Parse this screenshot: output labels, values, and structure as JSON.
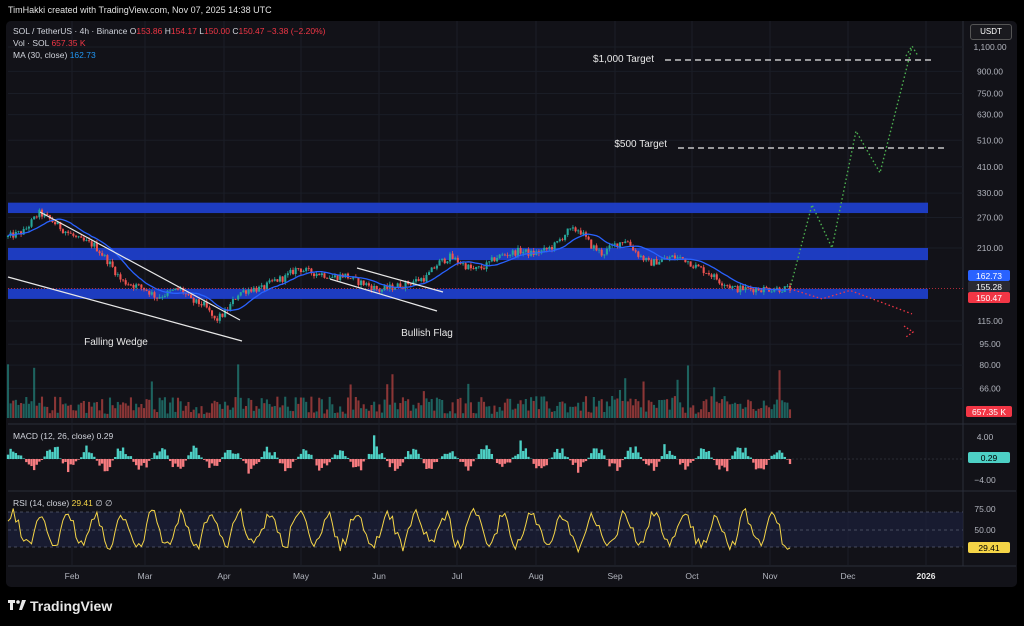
{
  "header": {
    "text": "TimHakki created with TradingView.com, Nov 07, 2025 14:38 UTC"
  },
  "legend": {
    "symbol": "SOL / TetherUS · 4h · Binance",
    "o_label": "O",
    "o": "153.86",
    "h_label": "H",
    "h": "154.17",
    "l_label": "L",
    "l": "150.00",
    "c_label": "C",
    "c": "150.47",
    "chg": "−3.38 (−2.20%)",
    "vol_label": "Vol · SOL",
    "vol": "657.35 K",
    "ma_label": "MA (30, close)",
    "ma": "162.73",
    "macd_label": "MACD (12, 26, close)",
    "macd": "0.29",
    "rsi_label": "RSI (14, close)",
    "rsi": "29.41",
    "rsi_extra": "∅ ∅"
  },
  "currency_button": "USDT",
  "brand": {
    "name": "TradingView",
    "logo": "tradingview-logo-icon"
  },
  "colors": {
    "up": "#26a69a",
    "down": "#ef5350",
    "zone": "#1f3fc9",
    "ma": "#2962ff",
    "rsi": "#f5d547",
    "target_path": "#4caf50",
    "bear_path": "#f23645"
  },
  "chart_data": [
    {
      "type": "candlestick",
      "title": "SOL / TetherUS · 4h · Binance",
      "x_ticks": [
        "Feb",
        "Mar",
        "Apr",
        "May",
        "Jun",
        "Jul",
        "Aug",
        "Sep",
        "Oct",
        "Nov",
        "Dec",
        "2026"
      ],
      "y_ticks": [
        "1,100.00",
        "900.00",
        "750.00",
        "630.00",
        "510.00",
        "410.00",
        "330.00",
        "270.00",
        "210.00",
        "115.00",
        "95.00",
        "80.00",
        "66.00"
      ],
      "y_scale": "log",
      "price_tags": [
        {
          "value": "162.73",
          "color": "#2962ff"
        },
        {
          "value": "155.28",
          "color": "#2a2a33"
        },
        {
          "value": "150.47",
          "color": "#f23645"
        }
      ],
      "price_path": [
        [
          0.0,
          230
        ],
        [
          0.02,
          240
        ],
        [
          0.04,
          280
        ],
        [
          0.05,
          270
        ],
        [
          0.07,
          245
        ],
        [
          0.09,
          225
        ],
        [
          0.11,
          215
        ],
        [
          0.12,
          200
        ],
        [
          0.13,
          185
        ],
        [
          0.145,
          160
        ],
        [
          0.16,
          155
        ],
        [
          0.175,
          150
        ],
        [
          0.19,
          140
        ],
        [
          0.205,
          145
        ],
        [
          0.22,
          150
        ],
        [
          0.235,
          135
        ],
        [
          0.25,
          132
        ],
        [
          0.265,
          115
        ],
        [
          0.28,
          125
        ],
        [
          0.295,
          145
        ],
        [
          0.31,
          150
        ],
        [
          0.325,
          150
        ],
        [
          0.34,
          160
        ],
        [
          0.355,
          165
        ],
        [
          0.37,
          178
        ],
        [
          0.385,
          172
        ],
        [
          0.4,
          170
        ],
        [
          0.415,
          165
        ],
        [
          0.43,
          168
        ],
        [
          0.445,
          160
        ],
        [
          0.46,
          155
        ],
        [
          0.475,
          148
        ],
        [
          0.49,
          152
        ],
        [
          0.505,
          155
        ],
        [
          0.52,
          160
        ],
        [
          0.535,
          165
        ],
        [
          0.55,
          185
        ],
        [
          0.565,
          195
        ],
        [
          0.58,
          185
        ],
        [
          0.595,
          175
        ],
        [
          0.61,
          180
        ],
        [
          0.625,
          195
        ],
        [
          0.64,
          200
        ],
        [
          0.655,
          205
        ],
        [
          0.67,
          200
        ],
        [
          0.685,
          205
        ],
        [
          0.7,
          215
        ],
        [
          0.715,
          240
        ],
        [
          0.73,
          245
        ],
        [
          0.745,
          215
        ],
        [
          0.76,
          200
        ],
        [
          0.775,
          215
        ],
        [
          0.79,
          225
        ],
        [
          0.805,
          200
        ],
        [
          0.82,
          185
        ],
        [
          0.835,
          190
        ],
        [
          0.85,
          195
        ],
        [
          0.865,
          192
        ],
        [
          0.88,
          180
        ],
        [
          0.895,
          172
        ],
        [
          0.91,
          160
        ],
        [
          0.93,
          150
        ]
      ],
      "zones": [
        {
          "low": 280,
          "high": 305
        },
        {
          "low": 190,
          "high": 210
        },
        {
          "low": 138,
          "high": 150
        }
      ],
      "bull_projection": [
        [
          150,
          300,
          210,
          550,
          390,
          1100
        ]
      ],
      "bear_projection": [
        [
          150,
          138,
          148,
          122
        ]
      ],
      "annotations": [
        {
          "text": "$1,000 Target",
          "value": 1000
        },
        {
          "text": "$500 Target",
          "value": 500
        },
        {
          "text": "Falling Wedge"
        },
        {
          "text": "Bullish Flag"
        }
      ],
      "grid": true
    },
    {
      "type": "bar",
      "title": "Vol · SOL",
      "last_value_tag": "657.35 K"
    },
    {
      "type": "bar",
      "title": "MACD (12, 26, close)",
      "y_ticks": [
        "4.00",
        "−4.00"
      ],
      "last_value_tag": "0.29"
    },
    {
      "type": "line",
      "title": "RSI (14, close)",
      "y_ticks": [
        "75.00",
        "50.00"
      ],
      "levels": [
        70,
        50,
        30
      ],
      "last_value_tag": "29.41"
    }
  ]
}
